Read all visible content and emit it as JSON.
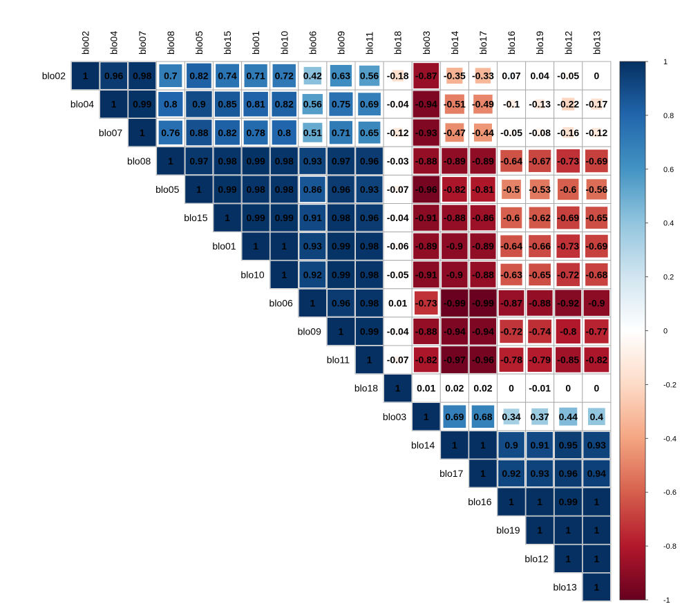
{
  "chart_data": {
    "type": "heatmap",
    "variables": [
      "blo02",
      "blo04",
      "blo07",
      "blo08",
      "blo05",
      "blo15",
      "blo01",
      "blo10",
      "blo06",
      "blo09",
      "blo11",
      "blo18",
      "blo03",
      "blo14",
      "blo17",
      "blo16",
      "blo19",
      "blo12",
      "blo13"
    ],
    "matrix_upper_rows": [
      [
        "1",
        "0.96",
        "0.98",
        "0.7",
        "0.82",
        "0.74",
        "0.71",
        "0.72",
        "0.42",
        "0.63",
        "0.56",
        "-0.18",
        "-0.87",
        "-0.35",
        "-0.33",
        "0.07",
        "0.04",
        "-0.05",
        "0"
      ],
      [
        "1",
        "0.99",
        "0.8",
        "0.9",
        "0.85",
        "0.81",
        "0.82",
        "0.56",
        "0.75",
        "0.69",
        "-0.04",
        "-0.94",
        "-0.51",
        "-0.49",
        "-0.1",
        "-0.13",
        "-0.22",
        "-0.17"
      ],
      [
        "1",
        "0.76",
        "0.88",
        "0.82",
        "0.78",
        "0.8",
        "0.51",
        "0.71",
        "0.65",
        "-0.12",
        "-0.93",
        "-0.47",
        "-0.44",
        "-0.05",
        "-0.08",
        "-0.16",
        "-0.12"
      ],
      [
        "1",
        "0.97",
        "0.98",
        "0.99",
        "0.98",
        "0.93",
        "0.97",
        "0.96",
        "-0.03",
        "-0.88",
        "-0.89",
        "-0.89",
        "-0.64",
        "-0.67",
        "-0.73",
        "-0.69"
      ],
      [
        "1",
        "0.99",
        "0.98",
        "0.98",
        "0.86",
        "0.96",
        "0.93",
        "-0.07",
        "-0.96",
        "-0.82",
        "-0.81",
        "-0.5",
        "-0.53",
        "-0.6",
        "-0.56"
      ],
      [
        "1",
        "0.99",
        "0.99",
        "0.91",
        "0.98",
        "0.96",
        "-0.04",
        "-0.91",
        "-0.88",
        "-0.86",
        "-0.6",
        "-0.62",
        "-0.69",
        "-0.65"
      ],
      [
        "1",
        "1",
        "0.93",
        "0.99",
        "0.98",
        "-0.06",
        "-0.89",
        "-0.9",
        "-0.89",
        "-0.64",
        "-0.66",
        "-0.73",
        "-0.69"
      ],
      [
        "1",
        "0.92",
        "0.99",
        "0.98",
        "-0.05",
        "-0.91",
        "-0.9",
        "-0.88",
        "-0.63",
        "-0.65",
        "-0.72",
        "-0.68"
      ],
      [
        "1",
        "0.96",
        "0.98",
        "0.01",
        "-0.73",
        "-0.99",
        "-0.99",
        "-0.87",
        "-0.88",
        "-0.92",
        "-0.9"
      ],
      [
        "1",
        "0.99",
        "-0.04",
        "-0.88",
        "-0.94",
        "-0.94",
        "-0.72",
        "-0.74",
        "-0.8",
        "-0.77"
      ],
      [
        "1",
        "-0.07",
        "-0.82",
        "-0.97",
        "-0.96",
        "-0.78",
        "-0.79",
        "-0.85",
        "-0.82"
      ],
      [
        "1",
        "0.01",
        "0.02",
        "0.02",
        "0",
        "-0.01",
        "0",
        "0"
      ],
      [
        "1",
        "0.69",
        "0.68",
        "0.34",
        "0.37",
        "0.44",
        "0.4"
      ],
      [
        "1",
        "1",
        "0.9",
        "0.91",
        "0.95",
        "0.93"
      ],
      [
        "1",
        "0.92",
        "0.93",
        "0.96",
        "0.94"
      ],
      [
        "1",
        "1",
        "0.99",
        "1"
      ],
      [
        "1",
        "1",
        "1"
      ],
      [
        "1",
        "1"
      ],
      [
        "1"
      ]
    ],
    "colorbar": {
      "ticks": [
        "1",
        "0.8",
        "0.6",
        "0.4",
        "0.2",
        "0",
        "-0.2",
        "-0.4",
        "-0.6",
        "-0.8",
        "-1"
      ],
      "range": [
        -1,
        1
      ]
    },
    "colors": {
      "negative_end": "#67001f",
      "neutral": "#ffffff",
      "positive_end": "#053061",
      "cell_border": "#aaaaaa"
    }
  }
}
